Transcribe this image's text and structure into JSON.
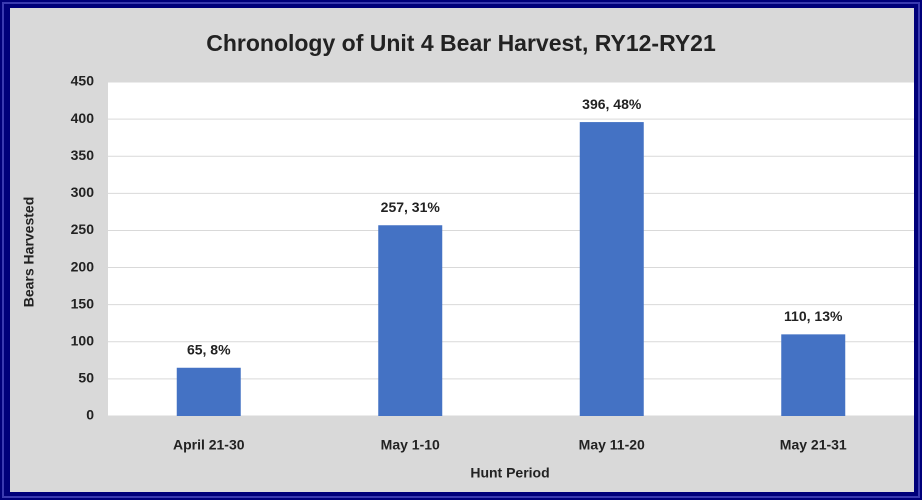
{
  "chart_data": {
    "type": "bar",
    "title": "Chronology of Unit 4 Bear Harvest, RY12-RY21",
    "x_label": "Hunt Period",
    "y_label": "Bears Harvested",
    "categories": [
      "April 21-30",
      "May 1-10",
      "May 11-20",
      "May 21-31"
    ],
    "values": [
      65,
      257,
      396,
      110
    ],
    "value_labels": [
      "65, 8%",
      "257, 31%",
      "396, 48%",
      "110, 13%"
    ],
    "color": "#4472c4",
    "ylim": [
      0,
      450
    ],
    "yticks": [
      0,
      50,
      100,
      150,
      200,
      250,
      300,
      350,
      400,
      450
    ],
    "grid": true
  }
}
